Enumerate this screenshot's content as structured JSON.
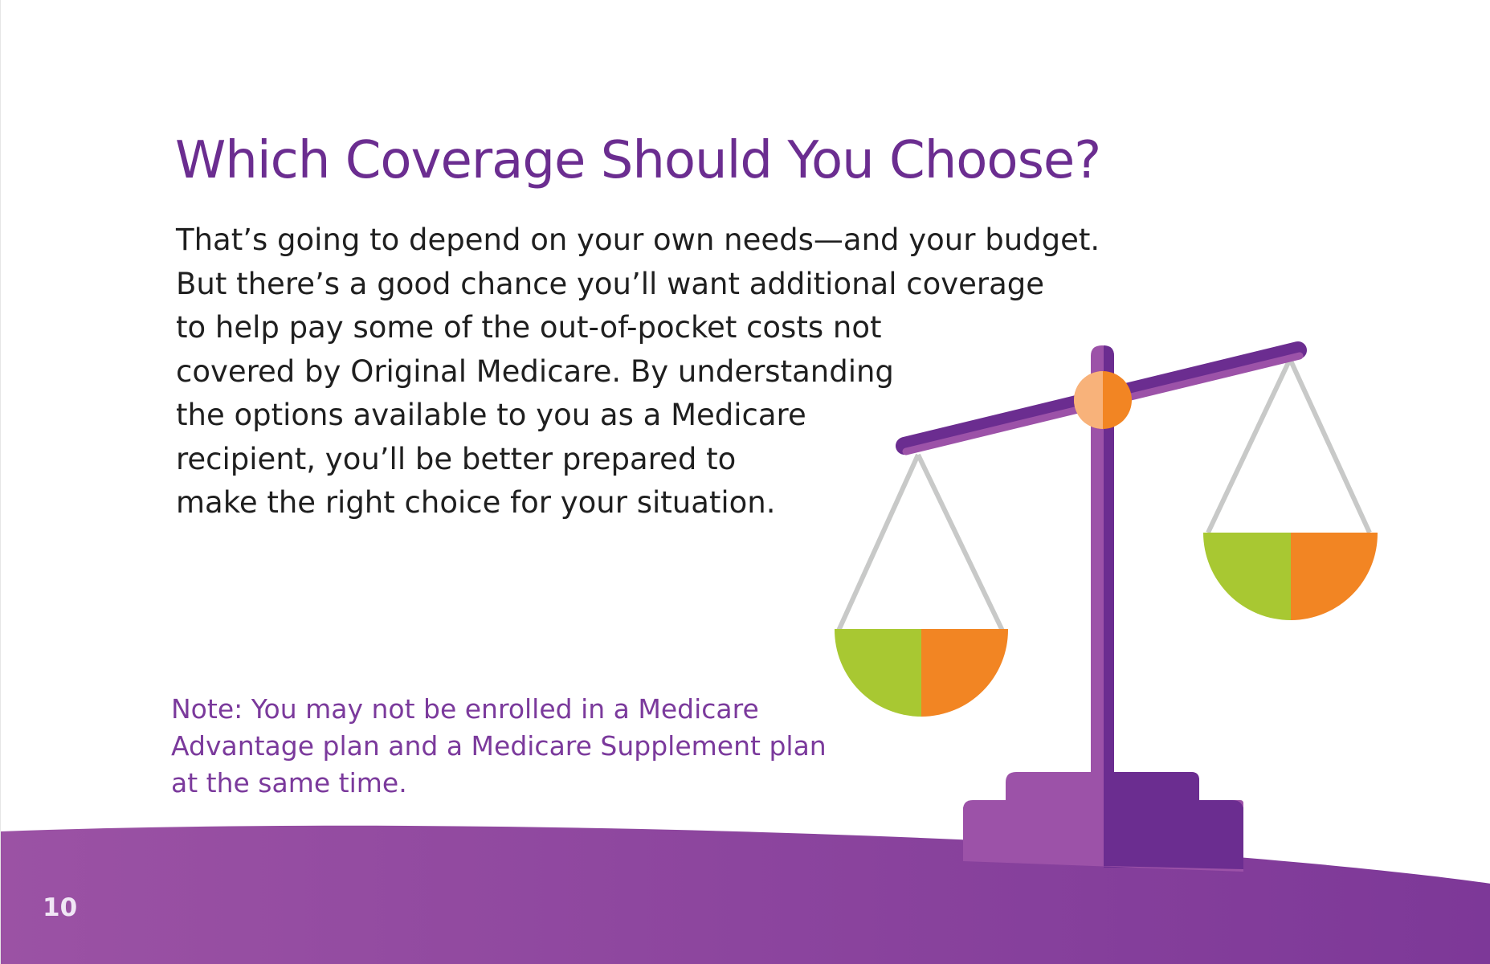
{
  "page": {
    "title": "Which Coverage Should You Choose?",
    "body_lines": [
      "That’s going to depend on your own needs—and your budget.",
      "But there’s a good chance you’ll want additional coverage",
      "to help pay some of the out-of-pocket costs not",
      "covered by Original Medicare. By understanding",
      "the options available to you as a Medicare",
      "recipient, you’ll be better prepared to",
      "make the right choice for your situation."
    ],
    "note_lines": [
      "Note: You may not be enrolled in a Medicare",
      "Advantage plan and a Medicare Supplement plan",
      "at the same time."
    ],
    "page_number": "10"
  },
  "illustration": {
    "icon": "balance-scale-icon",
    "colors": {
      "purple_dark": "#6b2d90",
      "purple_light": "#9c52a8",
      "green": "#a8c832",
      "orange": "#f28523",
      "pivot_light": "#f8b27a",
      "chain_gray": "#c8c9c8"
    }
  },
  "footer": {
    "color_start": "#9b52a4",
    "color_end": "#7d3898"
  }
}
